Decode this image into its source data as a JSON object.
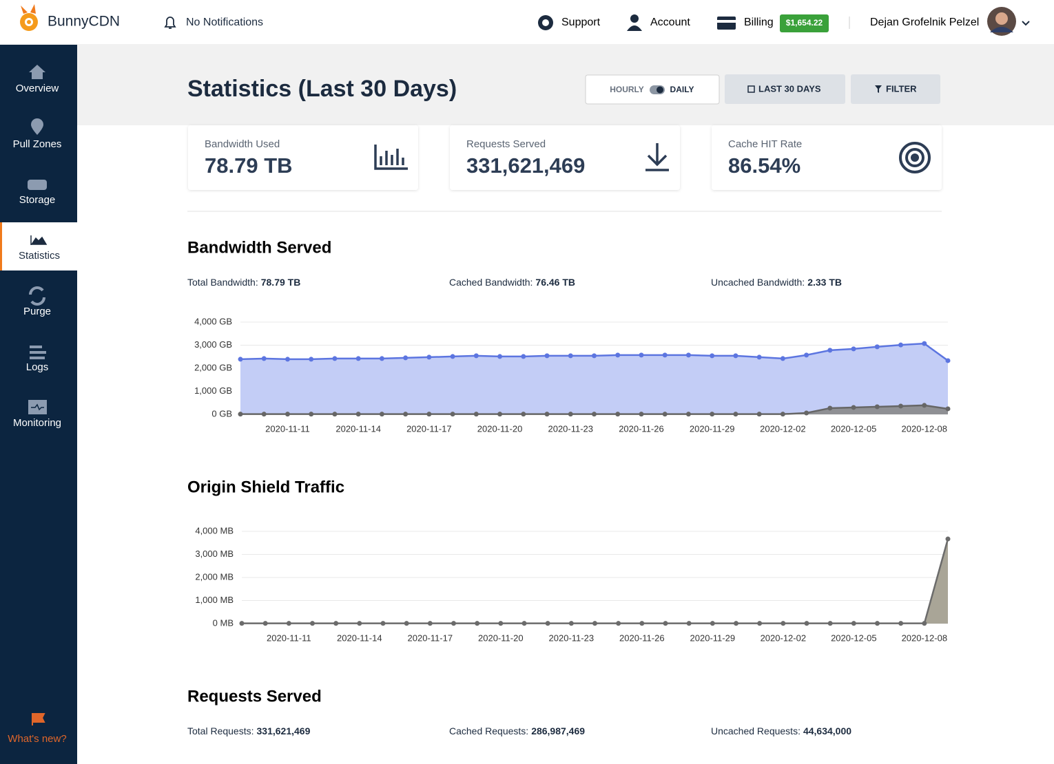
{
  "header": {
    "brand": "BunnyCDN",
    "notifications": "No Notifications",
    "nav": [
      "Support",
      "Account",
      "Billing"
    ],
    "balance": "$1,654.22",
    "user": "Dejan Grofelnik Pelzel"
  },
  "sidebar": {
    "items": [
      "Overview",
      "Pull Zones",
      "Storage",
      "Statistics",
      "Purge",
      "Logs",
      "Monitoring"
    ],
    "footer": "What's new?"
  },
  "page": {
    "title": "Statistics (Last 30 Days)",
    "toggle": {
      "left": "HOURLY",
      "right": "DAILY"
    },
    "range_button": "LAST 30 DAYS",
    "filter_button": "FILTER"
  },
  "cards": [
    {
      "label": "Bandwidth Used",
      "value": "78.79 TB"
    },
    {
      "label": "Requests Served",
      "value": "331,621,469"
    },
    {
      "label": "Cache HIT Rate",
      "value": "86.54%"
    }
  ],
  "bandwidth_summary": [
    {
      "label": "Total Bandwidth:",
      "value": "78.79 TB"
    },
    {
      "label": "Cached Bandwidth:",
      "value": "76.46 TB"
    },
    {
      "label": "Uncached Bandwidth:",
      "value": "2.33 TB"
    }
  ],
  "requests": {
    "title": "Requests Served",
    "summary": [
      {
        "label": "Total Requests:",
        "value": "331,621,469"
      },
      {
        "label": "Cached Requests:",
        "value": "286,987,469"
      },
      {
        "label": "Uncached Requests:",
        "value": "44,634,000"
      }
    ]
  },
  "chart_data": [
    {
      "type": "area",
      "title": "Bandwidth Served",
      "categories": [
        null,
        null,
        "2020-11-11",
        null,
        null,
        "2020-11-14",
        null,
        null,
        "2020-11-17",
        null,
        null,
        "2020-11-20",
        null,
        null,
        "2020-11-23",
        null,
        null,
        "2020-11-26",
        null,
        null,
        "2020-11-29",
        null,
        null,
        "2020-12-02",
        null,
        null,
        "2020-12-05",
        null,
        null,
        "2020-12-08",
        null
      ],
      "series": [
        {
          "color": "#5c75e0",
          "fill": "#c3cdf6",
          "values": [
            2390,
            2420,
            2390,
            2390,
            2420,
            2420,
            2420,
            2450,
            2480,
            2510,
            2540,
            2510,
            2510,
            2540,
            2540,
            2540,
            2570,
            2570,
            2570,
            2570,
            2540,
            2540,
            2480,
            2420,
            2570,
            2780,
            2840,
            2930,
            3010,
            3070,
            2330
          ]
        },
        {
          "color": "#666666",
          "fill": "#8f9094",
          "values": [
            10,
            10,
            10,
            10,
            10,
            10,
            10,
            10,
            10,
            10,
            10,
            10,
            10,
            10,
            10,
            10,
            10,
            10,
            10,
            10,
            10,
            10,
            10,
            10,
            60,
            270,
            300,
            330,
            360,
            390,
            240
          ]
        }
      ],
      "ylim": [
        0,
        4000
      ],
      "yticks": [
        {
          "value": 0,
          "label": "0 GB"
        },
        {
          "value": 1000,
          "label": "1,000 GB"
        },
        {
          "value": 2000,
          "label": "2,000 GB"
        },
        {
          "value": 3000,
          "label": "3,000 GB"
        },
        {
          "value": 4000,
          "label": "4,000 GB"
        }
      ],
      "grid": true
    },
    {
      "type": "area",
      "title": "Origin Shield Traffic",
      "categories": [
        null,
        null,
        "2020-11-11",
        null,
        null,
        "2020-11-14",
        null,
        null,
        "2020-11-17",
        null,
        null,
        "2020-11-20",
        null,
        null,
        "2020-11-23",
        null,
        null,
        "2020-11-26",
        null,
        null,
        "2020-11-29",
        null,
        null,
        "2020-12-02",
        null,
        null,
        "2020-12-05",
        null,
        null,
        "2020-12-08",
        null
      ],
      "series": [
        {
          "color": "#6b6b6b",
          "fill": "#a9a597",
          "values": [
            10,
            10,
            10,
            10,
            10,
            10,
            10,
            10,
            10,
            10,
            10,
            10,
            10,
            10,
            10,
            10,
            10,
            10,
            10,
            10,
            10,
            10,
            10,
            10,
            10,
            10,
            10,
            10,
            10,
            10,
            3670
          ]
        }
      ],
      "ylim": [
        0,
        4000
      ],
      "yticks": [
        {
          "value": 0,
          "label": "0 MB"
        },
        {
          "value": 1000,
          "label": "1,000 MB"
        },
        {
          "value": 2000,
          "label": "2,000 MB"
        },
        {
          "value": 3000,
          "label": "3,000 MB"
        },
        {
          "value": 4000,
          "label": "4,000 MB"
        }
      ],
      "grid": true
    }
  ]
}
